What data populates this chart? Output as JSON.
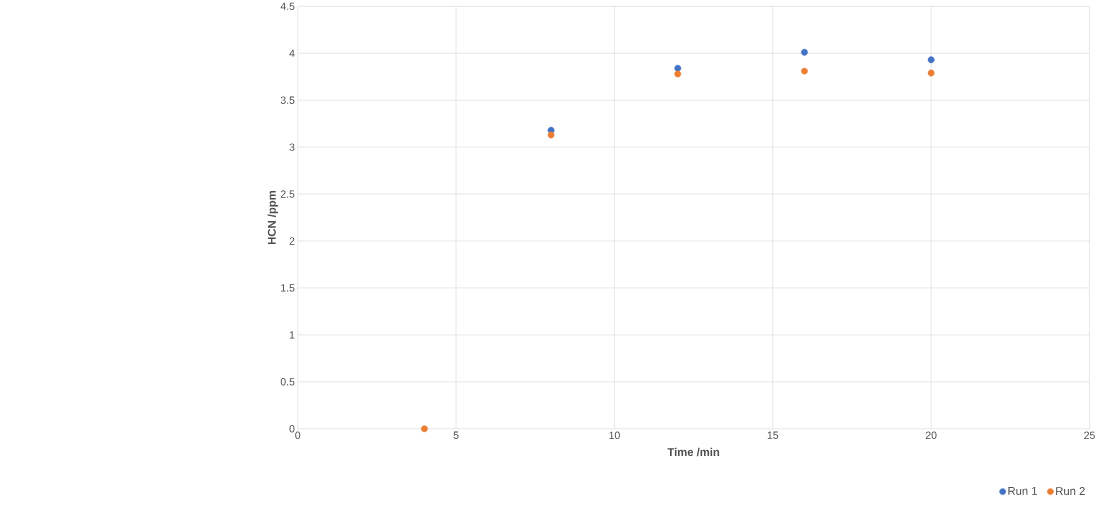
{
  "chart_data": {
    "type": "scatter",
    "xlabel": "Time /min",
    "ylabel": "HCN /ppm",
    "x": [
      4,
      8,
      12,
      16,
      20
    ],
    "series": [
      {
        "name": "Run 1",
        "color": "#4472c4",
        "values": [
          null,
          3.18,
          3.84,
          4.01,
          3.93
        ]
      },
      {
        "name": "Run 2",
        "color": "#ed7d31",
        "values": [
          0,
          3.13,
          3.78,
          3.81,
          3.79
        ]
      }
    ],
    "xlim": [
      0,
      25
    ],
    "xticks": [
      0,
      5,
      10,
      15,
      20,
      25
    ],
    "ylim": [
      0,
      4.5
    ],
    "yticks": [
      0,
      0.5,
      1,
      1.5,
      2,
      2.5,
      3,
      3.5,
      4,
      4.5
    ],
    "grid": true,
    "legend": "bottom right",
    "marker": "circle"
  }
}
